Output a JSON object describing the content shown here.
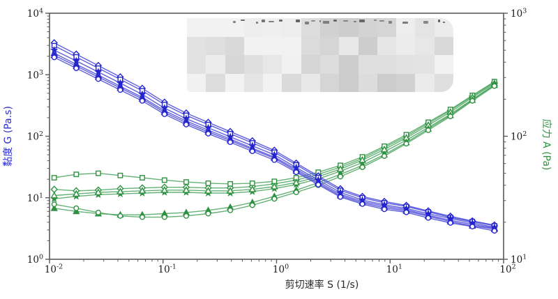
{
  "chart_data": {
    "type": "line",
    "title": "",
    "redacted_overlay": true,
    "x_axis": {
      "label": "剪切速率 S (1/s)",
      "scale": "log",
      "min": 0.01,
      "max": 100,
      "tick_exponents": [
        -2,
        -1,
        0,
        1,
        2
      ]
    },
    "y_left_axis": {
      "label": "黏度 G (Pa.s)",
      "scale": "log",
      "min": 1,
      "max": 10000,
      "tick_exponents": [
        0,
        1,
        2,
        3,
        4
      ],
      "color": "#2b2bd0"
    },
    "y_right_axis": {
      "label": "应力 A (Pa)",
      "scale": "log",
      "min": 10,
      "max": 1000,
      "tick_exponents": [
        1,
        2,
        3
      ],
      "color": "#2f9140"
    },
    "legend_position": "none",
    "grid": false,
    "shear_rate": [
      0.011,
      0.0172,
      0.0269,
      0.042,
      0.0656,
      0.103,
      0.16,
      0.25,
      0.391,
      0.612,
      0.956,
      1.49,
      2.33,
      3.65,
      5.7,
      8.9,
      13.9,
      21.7,
      34,
      53.1,
      83
    ],
    "viscosity_series": [
      {
        "name": "series-1",
        "marker": "diamond-open",
        "values": [
          3300,
          2160,
          1410,
          920,
          600,
          357,
          238,
          168,
          119,
          84,
          59,
          36.5,
          22.6,
          14,
          10.5,
          8.7,
          7.5,
          6.1,
          5,
          4.2,
          3.6
        ]
      },
      {
        "name": "series-2",
        "marker": "square-open",
        "values": [
          2970,
          1950,
          1280,
          840,
          550,
          328,
          219,
          155,
          110,
          78,
          55,
          34.3,
          21.3,
          13.2,
          10,
          8.3,
          7.2,
          5.9,
          4.8,
          4.1,
          3.5
        ]
      },
      {
        "name": "series-3",
        "marker": "star-filled",
        "values": [
          2510,
          1680,
          1110,
          730,
          480,
          287,
          193,
          137,
          98,
          70,
          50,
          31,
          19.5,
          12.2,
          9.2,
          7.7,
          6.7,
          5.5,
          4.6,
          3.9,
          3.3
        ]
      },
      {
        "name": "series-4",
        "marker": "triangle-open",
        "values": [
          2240,
          1480,
          985,
          650,
          430,
          261,
          177,
          126,
          90,
          64,
          46,
          29,
          18.2,
          11.4,
          8.7,
          7.3,
          6.4,
          5.2,
          4.3,
          3.7,
          3.2
        ]
      },
      {
        "name": "series-5",
        "marker": "triangle-filled",
        "values": [
          2080,
          1385,
          920,
          610,
          405,
          245,
          166,
          118,
          85,
          61,
          44,
          27.4,
          17.2,
          10.8,
          8.3,
          6.9,
          6.1,
          5,
          4.1,
          3.5,
          3.1
        ]
      },
      {
        "name": "series-6",
        "marker": "circle-open",
        "values": [
          1915,
          1275,
          850,
          565,
          376,
          228,
          155,
          110,
          80,
          57,
          41,
          26,
          16.3,
          10.3,
          7.9,
          6.5,
          5.8,
          4.7,
          3.9,
          3.4,
          2.9
        ]
      }
    ],
    "stress_series": [
      {
        "name": "series-1",
        "marker": "diamond-open",
        "values": [
          37,
          36,
          36.5,
          37.5,
          38,
          38.5,
          38.5,
          38,
          38,
          39,
          41,
          44,
          49,
          56,
          66,
          81,
          100,
          127,
          162,
          212,
          274
        ]
      },
      {
        "name": "series-2",
        "marker": "square-open",
        "values": [
          46,
          49,
          50,
          48,
          46,
          44,
          42.5,
          41.5,
          41,
          41.5,
          43,
          46,
          51,
          58,
          68,
          83,
          103,
          130,
          165,
          215,
          278
        ]
      },
      {
        "name": "series-3",
        "marker": "star-filled",
        "values": [
          31,
          32.5,
          33.5,
          34,
          34.5,
          35,
          35,
          34.5,
          34.5,
          35.5,
          37.5,
          40.5,
          45,
          52,
          61,
          75,
          93,
          118,
          151,
          200,
          262
        ]
      },
      {
        "name": "series-4",
        "marker": "triangle-open",
        "values": [
          33,
          34,
          35,
          35.5,
          36,
          36.5,
          36.5,
          36,
          36,
          37,
          39,
          42,
          47,
          54,
          64,
          78,
          97,
          123,
          157,
          207,
          268
        ]
      },
      {
        "name": "series-5",
        "marker": "triangle-filled",
        "values": [
          26,
          24.5,
          23.5,
          23,
          23,
          23.5,
          24,
          25,
          26.5,
          29,
          32.5,
          36.5,
          42,
          49,
          58,
          71,
          89,
          115,
          148,
          197,
          260
        ]
      },
      {
        "name": "series-6",
        "marker": "circle-open",
        "values": [
          28,
          26,
          24,
          22.5,
          22,
          22,
          22.5,
          23.5,
          25,
          27.5,
          31,
          35,
          40,
          47,
          56,
          69,
          87,
          112,
          145,
          194,
          256
        ]
      }
    ],
    "line_colors": {
      "viscosity": "#4343d8",
      "stress": "#4aa35e"
    },
    "marker_colors": {
      "viscosity": "#2424cd",
      "stress": "#2f9140"
    },
    "frame_color": "#5a5a5a"
  }
}
